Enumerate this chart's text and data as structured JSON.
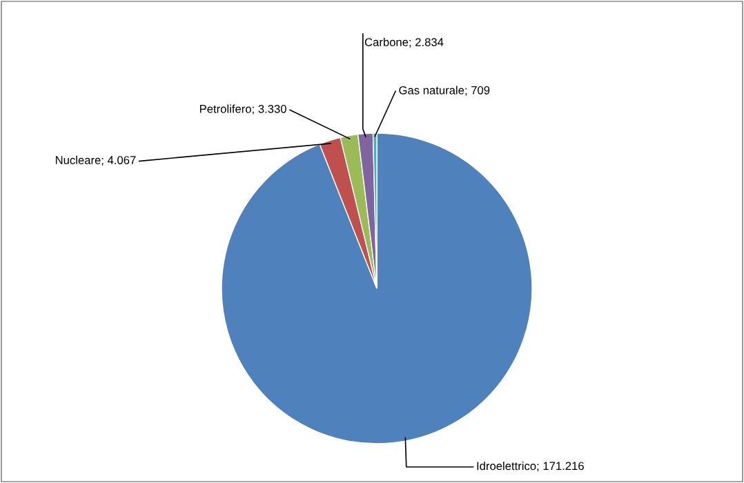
{
  "chart_data": {
    "type": "pie",
    "categories": [
      "Idroelettrico",
      "Nucleare",
      "Petrolifero",
      "Carbone",
      "Gas naturale"
    ],
    "values": [
      171216,
      4067,
      3330,
      2834,
      709
    ],
    "value_labels": [
      "171.216",
      "4.067",
      "3.330",
      "2.834",
      "709"
    ],
    "colors": [
      "#4f81bd",
      "#c0504d",
      "#9bbb59",
      "#8064a2",
      "#4bacc6"
    ],
    "legend": false
  }
}
